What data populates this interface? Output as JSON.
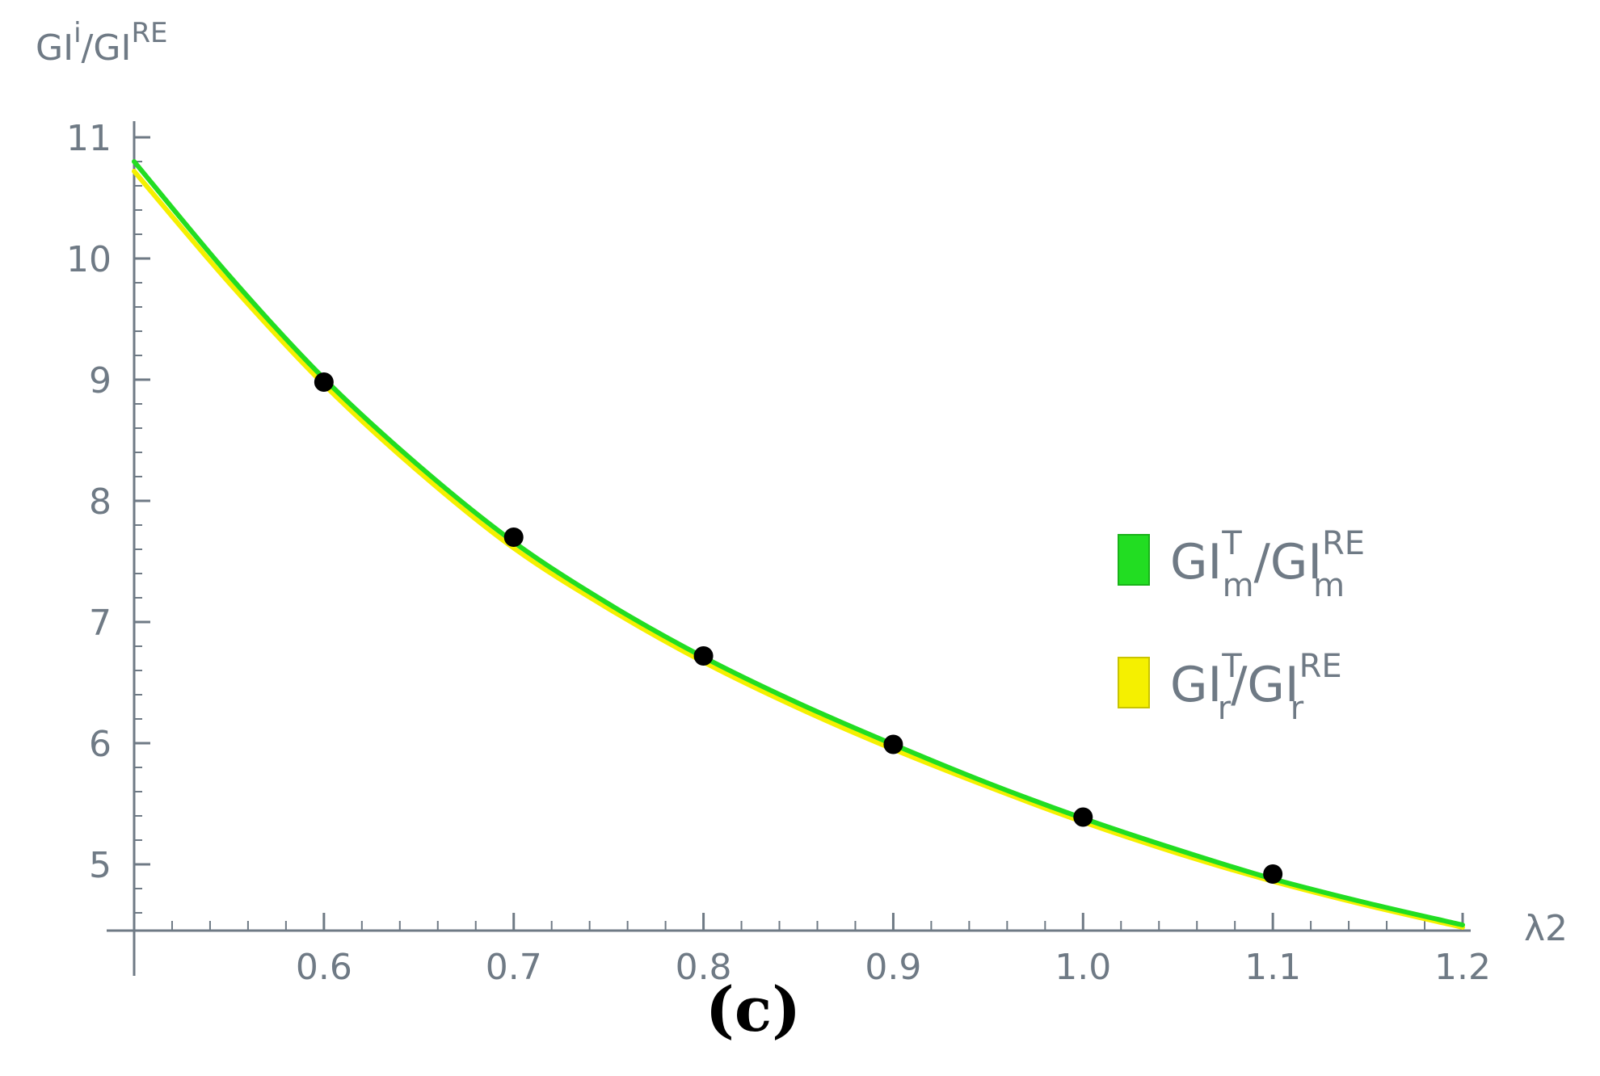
{
  "chart_data": {
    "type": "line",
    "panel_label": "(c)",
    "xlabel": "λ2",
    "ylabel": {
      "main": "GI",
      "sup": "i",
      "mid": "/GI",
      "sup2": "RE"
    },
    "xlim": [
      0.5,
      1.2
    ],
    "ylim": [
      4.45,
      11.1
    ],
    "x_ticks": [
      0.6,
      0.7,
      0.8,
      0.9,
      1.0,
      1.1,
      1.2
    ],
    "x_tick_labels": [
      "0.6",
      "0.7",
      "0.8",
      "0.9",
      "1.0",
      "1.1",
      "1.2"
    ],
    "y_ticks": [
      5,
      6,
      7,
      8,
      9,
      10,
      11
    ],
    "y_tick_labels": [
      "5",
      "6",
      "7",
      "8",
      "9",
      "10",
      "11"
    ],
    "legend_position": "right",
    "series": [
      {
        "name": "GI_m^T/GI_m^RE",
        "label": {
          "base1": "GI",
          "sup1": "T",
          "sub1": "m",
          "sep": "/GI",
          "sup2": "RE",
          "sub2": "m"
        },
        "color": "#22dd22",
        "x": [
          0.5,
          0.55,
          0.6,
          0.65,
          0.7,
          0.75,
          0.8,
          0.85,
          0.9,
          0.95,
          1.0,
          1.05,
          1.1,
          1.15,
          1.2
        ],
        "y": [
          10.8,
          9.86,
          9.01,
          8.29,
          7.66,
          7.15,
          6.71,
          6.33,
          5.99,
          5.67,
          5.38,
          5.12,
          4.88,
          4.68,
          4.5
        ]
      },
      {
        "name": "GI_r^T/GI_r^RE",
        "label": {
          "base1": "GI",
          "sup1": "T",
          "sub1": "r",
          "sep": "/GI",
          "sup2": "RE",
          "sub2": "r"
        },
        "color": "#f5f000",
        "x": [
          0.5,
          0.55,
          0.6,
          0.65,
          0.7,
          0.75,
          0.8,
          0.85,
          0.9,
          0.95,
          1.0,
          1.05,
          1.1,
          1.15,
          1.2
        ],
        "y": [
          10.72,
          9.8,
          8.96,
          8.24,
          7.61,
          7.11,
          6.67,
          6.29,
          5.95,
          5.64,
          5.35,
          5.09,
          4.86,
          4.66,
          4.48
        ]
      }
    ],
    "points": {
      "color": "#000000",
      "x": [
        0.6,
        0.7,
        0.8,
        0.9,
        1.0,
        1.1
      ],
      "y": [
        8.98,
        7.7,
        6.72,
        5.99,
        5.39,
        4.92
      ]
    }
  }
}
